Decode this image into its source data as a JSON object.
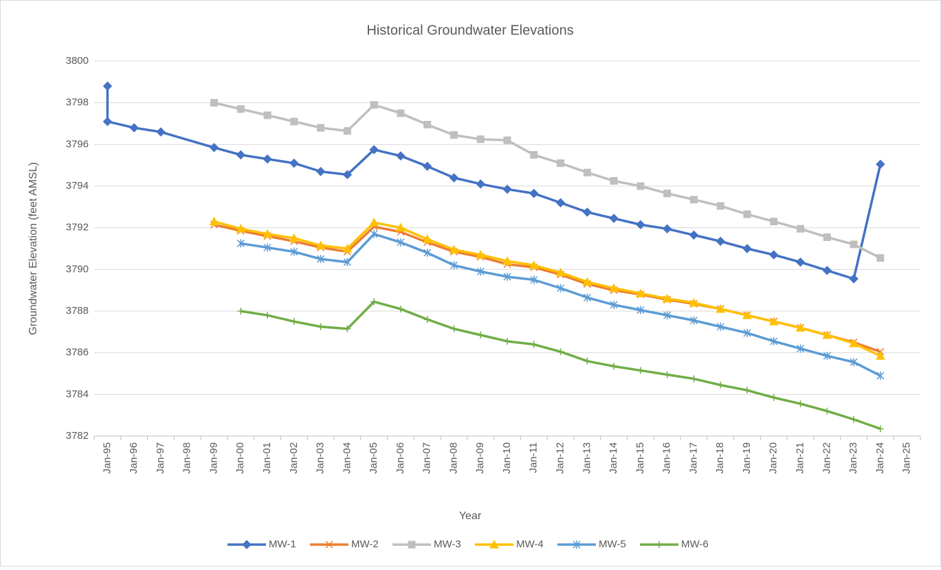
{
  "chart_data": {
    "type": "line",
    "title": "Historical Groundwater Elevations",
    "x_label": "Year",
    "y_label": "Groundwater Elevation (feet AMSL)",
    "categories": [
      "Jan-95",
      "Jan-96",
      "Jan-97",
      "Jan-98",
      "Jan-99",
      "Jan-00",
      "Jan-01",
      "Jan-02",
      "Jan-03",
      "Jan-04",
      "Jan-05",
      "Jan-06",
      "Jan-07",
      "Jan-08",
      "Jan-09",
      "Jan-10",
      "Jan-11",
      "Jan-12",
      "Jan-13",
      "Jan-14",
      "Jan-15",
      "Jan-16",
      "Jan-17",
      "Jan-18",
      "Jan-19",
      "Jan-20",
      "Jan-21",
      "Jan-22",
      "Jan-23",
      "Jan-24",
      "Jan-25"
    ],
    "ylim": [
      3782,
      3800
    ],
    "yticks": [
      3782,
      3784,
      3786,
      3788,
      3790,
      3792,
      3794,
      3796,
      3798,
      3800
    ],
    "grid": true,
    "legend": "bottom",
    "series": [
      {
        "name": "MW-1",
        "color": "#4472c4",
        "marker": "diamond",
        "x": [
          "Jan-95",
          "Jan-95",
          "Jan-96",
          "Jan-97",
          "Jan-99",
          "Jan-00",
          "Jan-01",
          "Jan-02",
          "Jan-03",
          "Jan-04",
          "Jan-05",
          "Jan-06",
          "Jan-07",
          "Jan-08",
          "Jan-09",
          "Jan-10",
          "Jan-11",
          "Jan-12",
          "Jan-13",
          "Jan-14",
          "Jan-15",
          "Jan-16",
          "Jan-17",
          "Jan-18",
          "Jan-19",
          "Jan-20",
          "Jan-21",
          "Jan-22",
          "Jan-23",
          "Jan-24"
        ],
        "values": [
          3798.8,
          3797.1,
          3796.8,
          3796.6,
          3795.85,
          3795.5,
          3795.3,
          3795.1,
          3794.7,
          3794.55,
          3795.75,
          3795.45,
          3794.95,
          3794.4,
          3794.1,
          3793.85,
          3793.65,
          3793.2,
          3792.75,
          3792.45,
          3792.15,
          3791.95,
          3791.65,
          3791.35,
          3791.0,
          3790.7,
          3790.35,
          3789.95,
          3789.55,
          3795.05
        ]
      },
      {
        "name": "MW-2",
        "color": "#ed7d31",
        "marker": "x",
        "x": [
          "Jan-99",
          "Jan-00",
          "Jan-01",
          "Jan-02",
          "Jan-03",
          "Jan-04",
          "Jan-05",
          "Jan-06",
          "Jan-07",
          "Jan-08",
          "Jan-09",
          "Jan-10",
          "Jan-11",
          "Jan-12",
          "Jan-13",
          "Jan-14",
          "Jan-15",
          "Jan-16",
          "Jan-17",
          "Jan-18",
          "Jan-19",
          "Jan-20",
          "Jan-21",
          "Jan-22",
          "Jan-23",
          "Jan-24"
        ],
        "values": [
          3792.15,
          3791.85,
          3791.6,
          3791.35,
          3791.05,
          3790.85,
          3792.05,
          3791.8,
          3791.3,
          3790.85,
          3790.6,
          3790.25,
          3790.1,
          3789.75,
          3789.3,
          3789.0,
          3788.8,
          3788.55,
          3788.35,
          3788.1,
          3787.8,
          3787.5,
          3787.2,
          3786.85,
          3786.5,
          3786.05
        ]
      },
      {
        "name": "MW-3",
        "color": "#bfbfbf",
        "marker": "square",
        "x": [
          "Jan-99",
          "Jan-00",
          "Jan-01",
          "Jan-02",
          "Jan-03",
          "Jan-04",
          "Jan-05",
          "Jan-06",
          "Jan-07",
          "Jan-08",
          "Jan-09",
          "Jan-10",
          "Jan-11",
          "Jan-12",
          "Jan-13",
          "Jan-14",
          "Jan-15",
          "Jan-16",
          "Jan-17",
          "Jan-18",
          "Jan-19",
          "Jan-20",
          "Jan-21",
          "Jan-22",
          "Jan-23",
          "Jan-24"
        ],
        "values": [
          3798.0,
          3797.7,
          3797.4,
          3797.1,
          3796.8,
          3796.65,
          3797.9,
          3797.5,
          3796.95,
          3796.45,
          3796.25,
          3796.2,
          3795.5,
          3795.1,
          3794.65,
          3794.25,
          3794.0,
          3793.65,
          3793.35,
          3793.05,
          3792.65,
          3792.3,
          3791.95,
          3791.55,
          3791.2,
          3790.55
        ]
      },
      {
        "name": "MW-4",
        "color": "#ffc000",
        "marker": "triangle",
        "x": [
          "Jan-99",
          "Jan-00",
          "Jan-01",
          "Jan-02",
          "Jan-03",
          "Jan-04",
          "Jan-05",
          "Jan-06",
          "Jan-07",
          "Jan-08",
          "Jan-09",
          "Jan-10",
          "Jan-11",
          "Jan-12",
          "Jan-13",
          "Jan-14",
          "Jan-15",
          "Jan-16",
          "Jan-17",
          "Jan-18",
          "Jan-19",
          "Jan-20",
          "Jan-21",
          "Jan-22",
          "Jan-23",
          "Jan-24"
        ],
        "values": [
          3792.3,
          3791.95,
          3791.7,
          3791.5,
          3791.15,
          3791.0,
          3792.25,
          3792.0,
          3791.45,
          3790.95,
          3790.7,
          3790.4,
          3790.2,
          3789.85,
          3789.4,
          3789.1,
          3788.85,
          3788.6,
          3788.4,
          3788.1,
          3787.8,
          3787.5,
          3787.2,
          3786.85,
          3786.45,
          3785.85
        ]
      },
      {
        "name": "MW-5",
        "color": "#5b9bd5",
        "marker": "asterisk",
        "x": [
          "Jan-00",
          "Jan-01",
          "Jan-02",
          "Jan-03",
          "Jan-04",
          "Jan-05",
          "Jan-06",
          "Jan-07",
          "Jan-08",
          "Jan-09",
          "Jan-10",
          "Jan-11",
          "Jan-12",
          "Jan-13",
          "Jan-14",
          "Jan-15",
          "Jan-16",
          "Jan-17",
          "Jan-18",
          "Jan-19",
          "Jan-20",
          "Jan-21",
          "Jan-22",
          "Jan-23",
          "Jan-24"
        ],
        "values": [
          3791.25,
          3791.05,
          3790.85,
          3790.5,
          3790.35,
          3791.7,
          3791.3,
          3790.8,
          3790.2,
          3789.9,
          3789.65,
          3789.5,
          3789.1,
          3788.65,
          3788.3,
          3788.05,
          3787.8,
          3787.55,
          3787.25,
          3786.95,
          3786.55,
          3786.2,
          3785.85,
          3785.55,
          3784.9
        ]
      },
      {
        "name": "MW-6",
        "color": "#70ad47",
        "marker": "plus",
        "x": [
          "Jan-00",
          "Jan-01",
          "Jan-02",
          "Jan-03",
          "Jan-04",
          "Jan-05",
          "Jan-06",
          "Jan-07",
          "Jan-08",
          "Jan-09",
          "Jan-10",
          "Jan-11",
          "Jan-12",
          "Jan-13",
          "Jan-14",
          "Jan-15",
          "Jan-16",
          "Jan-17",
          "Jan-18",
          "Jan-19",
          "Jan-20",
          "Jan-21",
          "Jan-22",
          "Jan-23",
          "Jan-24"
        ],
        "values": [
          3788.0,
          3787.8,
          3787.5,
          3787.25,
          3787.15,
          3788.45,
          3788.1,
          3787.6,
          3787.15,
          3786.85,
          3786.55,
          3786.4,
          3786.05,
          3785.6,
          3785.35,
          3785.15,
          3784.95,
          3784.75,
          3784.45,
          3784.2,
          3783.85,
          3783.55,
          3783.2,
          3782.8,
          3782.35
        ]
      }
    ]
  }
}
